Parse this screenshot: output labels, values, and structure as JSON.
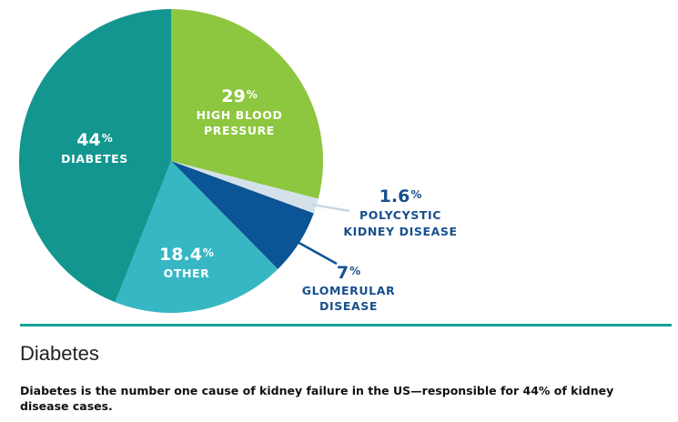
{
  "chart_data": {
    "type": "pie",
    "slices": [
      {
        "value": "29",
        "unit": "%",
        "label_lines": [
          "HIGH BLOOD",
          "PRESSURE"
        ],
        "color": "#8dc63f",
        "label_color": "#ffffff"
      },
      {
        "value": "1.6",
        "unit": "%",
        "label_lines": [
          "POLYCYSTIC",
          "KIDNEY DISEASE"
        ],
        "color": "#d4e1ea",
        "label_color": "#17508d"
      },
      {
        "value": "7",
        "unit": "%",
        "label_lines": [
          "GLOMERULAR",
          "DISEASE"
        ],
        "color": "#0b5495",
        "label_color": "#17508d"
      },
      {
        "value": "18.4",
        "unit": "%",
        "label_lines": [
          "OTHER"
        ],
        "color": "#37b7c3",
        "label_color": "#ffffff"
      },
      {
        "value": "44",
        "unit": "%",
        "label_lines": [
          "DIABETES"
        ],
        "color": "#12968f",
        "label_color": "#ffffff"
      }
    ]
  },
  "colors": {
    "accent": "#12a49a",
    "title_text": "#222222",
    "body_text": "#111111"
  },
  "section": {
    "title": "Diabetes",
    "description": "Diabetes is the number one cause of kidney failure in the US—responsible for 44% of kidney disease cases."
  }
}
